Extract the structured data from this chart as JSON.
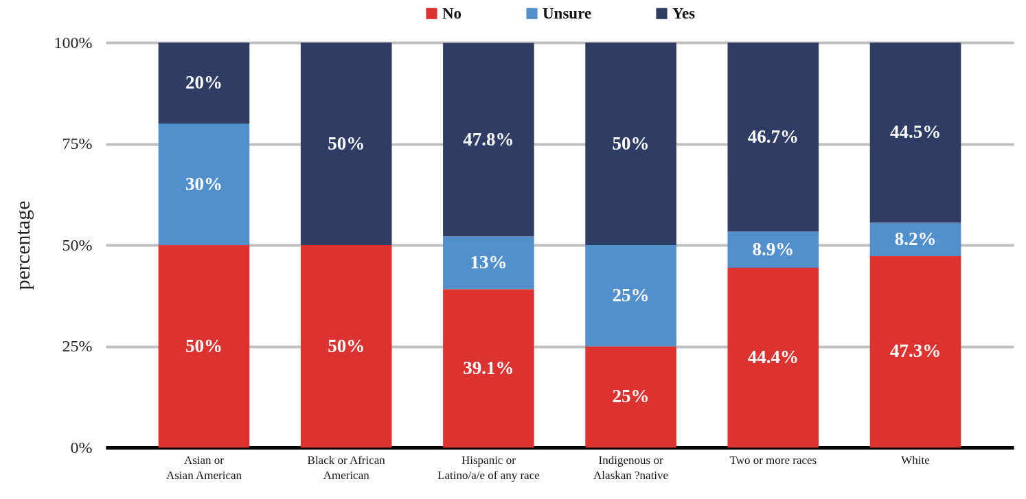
{
  "chart_data": {
    "type": "bar",
    "stacked": true,
    "categories": [
      "Asian or\nAsian American",
      "Black or African\nAmerican",
      "Hispanic or\nLatino/a/e of any race",
      "Indigenous or\nAlaskan ?native",
      "Two or more races",
      "White"
    ],
    "ylabel": "percentage",
    "ylim": [
      0,
      100
    ],
    "yticks": [
      {
        "value": 0,
        "label": "0%"
      },
      {
        "value": 25,
        "label": "25%"
      },
      {
        "value": 50,
        "label": "50%"
      },
      {
        "value": 75,
        "label": "75%"
      },
      {
        "value": 100,
        "label": "100%"
      }
    ],
    "grid": "y",
    "legend": "top",
    "series": [
      {
        "name": "No",
        "color": "#dd3330",
        "values": [
          50,
          50,
          39.1,
          25,
          44.4,
          47.3
        ],
        "value_labels": [
          "50%",
          "50%",
          "39.1%",
          "25%",
          "44.4%",
          "47.3%"
        ]
      },
      {
        "name": "Unsure",
        "color": "#5190cc",
        "values": [
          30,
          null,
          13,
          25,
          8.9,
          8.2
        ],
        "value_labels": [
          "30%",
          null,
          "13%",
          "25%",
          "8.9%",
          "8.2%"
        ]
      },
      {
        "name": "Yes",
        "color": "#2f3d65",
        "values": [
          20,
          50,
          47.8,
          50,
          46.7,
          44.5
        ],
        "value_labels": [
          "20%",
          "50%",
          "47.8%",
          "50%",
          "46.7%",
          "44.5%"
        ]
      }
    ]
  }
}
